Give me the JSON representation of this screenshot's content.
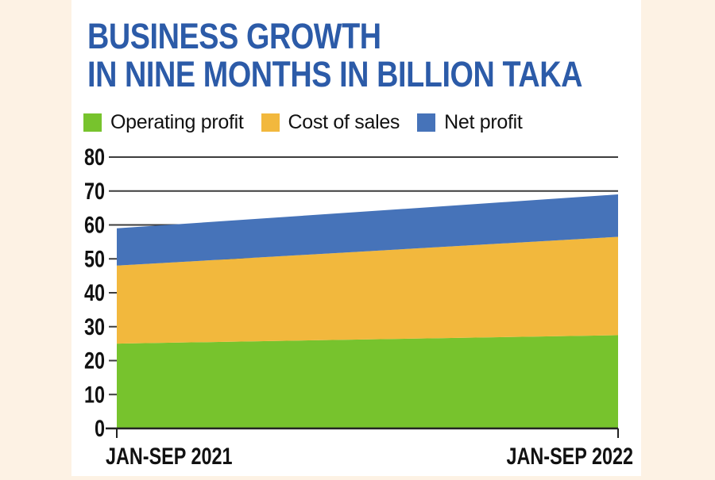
{
  "page": {
    "background_color": "#fdf2e4",
    "panel_color": "#ffffff"
  },
  "title": {
    "line1": "BUSINESS GROWTH",
    "line2": "IN NINE MONTHS IN BILLION TAKA",
    "color": "#2c5ba8"
  },
  "chart_data": {
    "type": "area",
    "stacked": true,
    "title": "BUSINESS GROWTH IN NINE MONTHS IN BILLION TAKA",
    "unit": "billion taka",
    "categories": [
      "JAN-SEP 2021",
      "JAN-SEP 2022"
    ],
    "series": [
      {
        "name": "Operating profit",
        "color": "#77c32d",
        "values": [
          25,
          27.5
        ]
      },
      {
        "name": "Cost of sales",
        "color": "#f2b83d",
        "values": [
          23,
          29
        ]
      },
      {
        "name": "Net profit",
        "color": "#4673b9",
        "values": [
          11,
          12.5
        ]
      }
    ],
    "stack_totals": [
      59,
      69
    ],
    "ylim": [
      0,
      80
    ],
    "yticks": [
      0,
      10,
      20,
      30,
      40,
      50,
      60,
      70,
      80
    ],
    "grid": true,
    "gridline_color": "#3d3d3d",
    "axis_color": "#222222",
    "tick_label_color": "#111111",
    "legend_position": "top"
  }
}
